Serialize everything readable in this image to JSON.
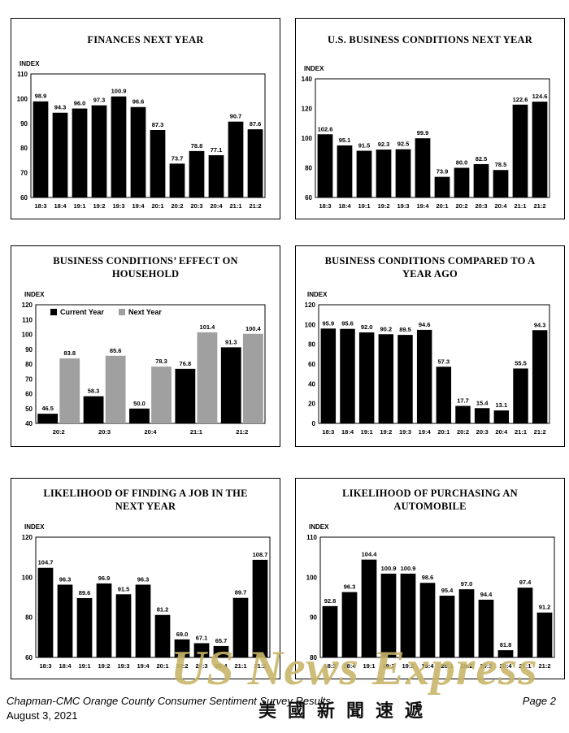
{
  "chart_data": [
    {
      "type": "bar",
      "title": "FINANCES NEXT YEAR",
      "ylabel": "INDEX",
      "ylim": [
        60,
        110
      ],
      "yticks": [
        60,
        70,
        80,
        90,
        100,
        110
      ],
      "categories": [
        "18:3",
        "18:4",
        "19:1",
        "19:2",
        "19:3",
        "19:4",
        "20:1",
        "20:2",
        "20:3",
        "20:4",
        "21:1",
        "21:2"
      ],
      "series": [
        {
          "values": [
            98.9,
            94.3,
            96.0,
            97.3,
            100.9,
            96.6,
            87.3,
            73.7,
            78.8,
            77.1,
            90.7,
            87.6
          ],
          "color": "#000000"
        }
      ],
      "value_labels": [
        "98.9",
        "94.3",
        "96.0",
        "97.3",
        "100.9",
        "96.6",
        "87.3",
        "73.7",
        "78.8",
        "77.1",
        "90.7",
        "87.6"
      ]
    },
    {
      "type": "bar",
      "title": "U.S. BUSINESS CONDITIONS NEXT YEAR",
      "ylabel": "INDEX",
      "ylim": [
        60,
        140
      ],
      "yticks": [
        60,
        80,
        100,
        120,
        140
      ],
      "categories": [
        "18:3",
        "18:4",
        "19:1",
        "19:2",
        "19:3",
        "19:4",
        "20:1",
        "20:2",
        "20:3",
        "20:4",
        "21:1",
        "21:2"
      ],
      "series": [
        {
          "values": [
            102.6,
            95.1,
            91.5,
            92.3,
            92.5,
            99.9,
            73.9,
            80.0,
            82.5,
            78.5,
            122.6,
            124.6
          ],
          "color": "#000000"
        }
      ],
      "value_labels": [
        "102.6",
        "95.1",
        "91.5",
        "92.3",
        "92.5",
        "99.9",
        "73.9",
        "80.0",
        "82.5",
        "78.5",
        "122.6",
        "124.6"
      ]
    },
    {
      "type": "bar",
      "title": "BUSINESS CONDITIONS’ EFFECT ON HOUSEHOLD",
      "ylabel": "INDEX",
      "ylim": [
        40,
        120
      ],
      "yticks": [
        40,
        50,
        60,
        70,
        80,
        90,
        100,
        110,
        120
      ],
      "categories": [
        "20:2",
        "20:3",
        "20:4",
        "21:1",
        "21:2"
      ],
      "series": [
        {
          "name": "Current Year",
          "values": [
            46.5,
            58.3,
            50.0,
            76.8,
            91.3
          ],
          "color": "#000000"
        },
        {
          "name": "Next Year",
          "values": [
            83.8,
            85.6,
            78.3,
            101.4,
            100.4
          ],
          "color": "#a0a0a0"
        }
      ],
      "value_labels": [
        [
          "46.5",
          "58.3",
          "50.0",
          "76.8",
          "91.3"
        ],
        [
          "83.8",
          "85.6",
          "78.3",
          "101.4",
          "100.4"
        ]
      ],
      "legend": "top-left"
    },
    {
      "type": "bar",
      "title": "BUSINESS CONDITIONS COMPARED TO A YEAR AGO",
      "ylabel": "INDEX",
      "ylim": [
        0,
        120
      ],
      "yticks": [
        0,
        20,
        40,
        60,
        80,
        100,
        120
      ],
      "categories": [
        "18:3",
        "18:4",
        "19:1",
        "19:2",
        "19:3",
        "19:4",
        "20:1",
        "20:2",
        "20:3",
        "20:4",
        "21:1",
        "21:2"
      ],
      "series": [
        {
          "values": [
            95.9,
            95.6,
            92.0,
            90.2,
            89.5,
            94.6,
            57.3,
            17.7,
            15.4,
            13.1,
            55.5,
            94.3
          ],
          "color": "#000000"
        }
      ],
      "value_labels": [
        "95.9",
        "95.6",
        "92.0",
        "90.2",
        "89.5",
        "94.6",
        "57.3",
        "17.7",
        "15.4",
        "13.1",
        "55.5",
        "94.3"
      ]
    },
    {
      "type": "bar",
      "title": "LIKELIHOOD OF FINDING A JOB IN THE NEXT YEAR",
      "ylabel": "INDEX",
      "ylim": [
        60,
        120
      ],
      "yticks": [
        60,
        80,
        100,
        120
      ],
      "categories": [
        "18:3",
        "18:4",
        "19:1",
        "19:2",
        "19:3",
        "19:4",
        "20:1",
        "20:2",
        "20:3",
        "20:4",
        "21:1",
        "21:2"
      ],
      "series": [
        {
          "values": [
            104.7,
            96.3,
            89.6,
            96.9,
            91.5,
            96.3,
            81.2,
            69.0,
            67.1,
            65.7,
            89.7,
            108.7
          ],
          "color": "#000000"
        }
      ],
      "value_labels": [
        "104.7",
        "96.3",
        "89.6",
        "96.9",
        "91.5",
        "96.3",
        "81.2",
        "69.0",
        "67.1",
        "65.7",
        "89.7",
        "108.7"
      ]
    },
    {
      "type": "bar",
      "title": "LIKELIHOOD OF PURCHASING AN AUTOMOBILE",
      "ylabel": "INDEX",
      "ylim": [
        80,
        110
      ],
      "yticks": [
        80,
        90,
        100,
        110
      ],
      "categories": [
        "18:3",
        "18:4",
        "19:1",
        "19:2",
        "19:3",
        "19:4",
        "20:1",
        "20:2",
        "20:3",
        "20:4",
        "21:1",
        "21:2"
      ],
      "series": [
        {
          "values": [
            92.8,
            96.3,
            104.4,
            100.9,
            100.9,
            98.6,
            95.4,
            97.0,
            94.4,
            81.8,
            97.4,
            91.2
          ],
          "color": "#000000"
        }
      ],
      "value_labels": [
        "92.8",
        "96.3",
        "104.4",
        "100.9",
        "100.9",
        "98.6",
        "95.4",
        "97.0",
        "94.4",
        "81.8",
        "97.4",
        "91.2"
      ]
    }
  ],
  "footer": {
    "source": "Chapman-CMC Orange County Consumer Sentiment Survey Results",
    "date": "August 3, 2021",
    "page": "Page 2"
  },
  "watermark": {
    "text": "US News Express",
    "chinese": "美國新聞速遞"
  }
}
